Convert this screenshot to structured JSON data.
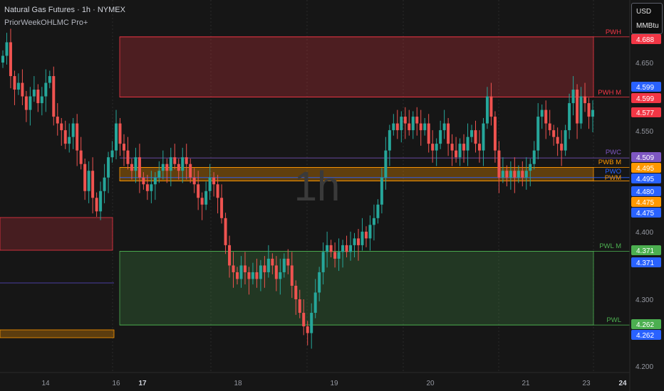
{
  "header": {
    "title": "Natural Gas Futures · 1h · NYMEX",
    "indicator": "PriorWeekOHLMC Pro+"
  },
  "units": {
    "currency": "USD",
    "unit": "MMBtu"
  },
  "watermark": "1h",
  "chart_data": {
    "type": "candlestick",
    "y_ticks": [
      "4.650",
      "4.550",
      "4.400",
      "4.300",
      "4.200"
    ],
    "x_ticks": [
      {
        "label": "14",
        "bold": false
      },
      {
        "label": "16",
        "bold": false
      },
      {
        "label": "17",
        "bold": true
      },
      {
        "label": "18",
        "bold": false
      },
      {
        "label": "19",
        "bold": false
      },
      {
        "label": "20",
        "bold": false
      },
      {
        "label": "21",
        "bold": false
      },
      {
        "label": "23",
        "bold": false
      },
      {
        "label": "24",
        "bold": true
      }
    ],
    "levels": [
      {
        "name": "PWH",
        "value": "4.688",
        "color": "#f23645"
      },
      {
        "name": "PWH M",
        "value": "4.599",
        "color": "#f23645"
      },
      {
        "name": "PWC",
        "value": "4.509",
        "color": "#7e57c2"
      },
      {
        "name": "PWB M",
        "value": "4.495",
        "color": "#ff9800"
      },
      {
        "name": "PWO",
        "value": "4.480",
        "color": "#2962ff"
      },
      {
        "name": "PWM",
        "value": "4.475",
        "color": "#ff9800"
      },
      {
        "name": "PWL M",
        "value": "4.371",
        "color": "#4caf50"
      },
      {
        "name": "PWL",
        "value": "4.262",
        "color": "#4caf50"
      }
    ],
    "price_badges": [
      {
        "value": "4.688",
        "color": "#f23645"
      },
      {
        "value": "4.599",
        "color": "#2962ff"
      },
      {
        "value": "4.599",
        "color": "#f23645"
      },
      {
        "value": "4.577",
        "color": "#f23645"
      },
      {
        "value": "4.509",
        "color": "#7e57c2"
      },
      {
        "value": "4.495",
        "color": "#ff9800"
      },
      {
        "value": "4.495",
        "color": "#2962ff"
      },
      {
        "value": "4.480",
        "color": "#2962ff"
      },
      {
        "value": "4.475",
        "color": "#ff9800"
      },
      {
        "value": "4.475",
        "color": "#2962ff"
      },
      {
        "value": "4.371",
        "color": "#4caf50"
      },
      {
        "value": "4.371",
        "color": "#2962ff"
      },
      {
        "value": "4.262",
        "color": "#4caf50"
      },
      {
        "value": "4.262",
        "color": "#2962ff"
      }
    ],
    "candles_close": [
      4.66,
      4.68,
      4.63,
      4.61,
      4.62,
      4.6,
      4.58,
      4.6,
      4.61,
      4.59,
      4.6,
      4.62,
      4.63,
      4.57,
      4.56,
      4.55,
      4.53,
      4.54,
      4.56,
      4.52,
      4.5,
      4.46,
      4.49,
      4.45,
      4.43,
      4.46,
      4.48,
      4.51,
      4.52,
      4.56,
      4.53,
      4.52,
      4.5,
      4.49,
      4.51,
      4.48,
      4.47,
      4.46,
      4.47,
      4.48,
      4.49,
      4.5,
      4.49,
      4.51,
      4.5,
      4.49,
      4.51,
      4.5,
      4.48,
      4.47,
      4.45,
      4.44,
      4.46,
      4.48,
      4.47,
      4.45,
      4.42,
      4.38,
      4.35,
      4.34,
      4.33,
      4.35,
      4.34,
      4.33,
      4.34,
      4.33,
      4.35,
      4.34,
      4.36,
      4.35,
      4.33,
      4.34,
      4.36,
      4.35,
      4.32,
      4.3,
      4.28,
      4.26,
      4.25,
      4.28,
      4.31,
      4.34,
      4.37,
      4.38,
      4.37,
      4.36,
      4.37,
      4.38,
      4.37,
      4.38,
      4.39,
      4.38,
      4.4,
      4.39,
      4.41,
      4.42,
      4.44,
      4.48,
      4.52,
      4.55,
      4.56,
      4.55,
      4.57,
      4.56,
      4.55,
      4.57,
      4.56,
      4.55,
      4.56,
      4.53,
      4.52,
      4.53,
      4.55,
      4.56,
      4.53,
      4.52,
      4.51,
      4.53,
      4.52,
      4.54,
      4.55,
      4.53,
      4.52,
      4.56,
      4.6,
      4.57,
      4.52,
      4.48,
      4.49,
      4.48,
      4.49,
      4.48,
      4.49,
      4.48,
      4.49,
      4.5,
      4.52,
      4.57,
      4.58,
      4.56,
      4.55,
      4.54,
      4.53,
      4.52,
      4.55,
      4.59,
      4.61,
      4.56,
      4.6,
      4.59,
      4.57,
      4.58
    ]
  }
}
